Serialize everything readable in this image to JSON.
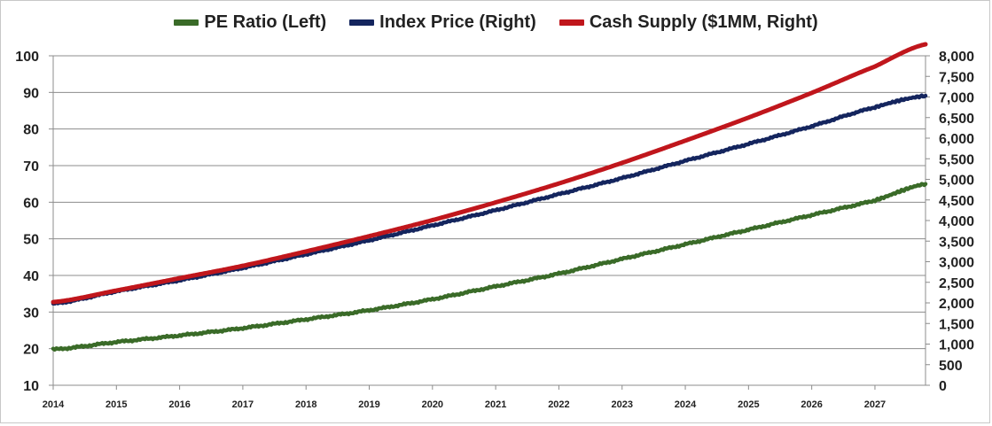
{
  "chart_data": {
    "type": "line",
    "title": "",
    "xlabel": "",
    "ylabel_left": "",
    "ylabel_right": "",
    "x_tick_labels": [
      "2014",
      "2015",
      "2016",
      "2017",
      "2018",
      "2019",
      "2020",
      "2021",
      "2022",
      "2023",
      "2024",
      "2025",
      "2026",
      "2027"
    ],
    "xlim": [
      2014,
      2027.8
    ],
    "ylim_left": [
      10,
      100
    ],
    "y_ticks_left": [
      "10",
      "20",
      "30",
      "40",
      "50",
      "60",
      "70",
      "80",
      "90",
      "100"
    ],
    "ylim_right": [
      0,
      8000
    ],
    "y_ticks_right": [
      "0",
      "500",
      "1,000",
      "1,500",
      "2,000",
      "2,500",
      "3,000",
      "3,500",
      "4,000",
      "4,500",
      "5,000",
      "5,500",
      "6,000",
      "6,500",
      "7,000",
      "7,500",
      "8,000"
    ],
    "grid": "horizontal",
    "legend_position": "top",
    "series": [
      {
        "name": "PE Ratio (Left)",
        "axis": "left",
        "color": "#3a6b28",
        "x": [
          2014,
          2015,
          2016,
          2017,
          2018,
          2019,
          2020,
          2021,
          2022,
          2023,
          2024,
          2025,
          2026,
          2027,
          2027.8
        ],
        "values": [
          19.8,
          21.8,
          23.6,
          25.6,
          28.0,
          30.5,
          33.5,
          37.0,
          40.5,
          44.5,
          48.5,
          52.5,
          56.5,
          60.5,
          65.0
        ]
      },
      {
        "name": "Index Price (Right)",
        "axis": "right",
        "color": "#14255e",
        "x": [
          2014,
          2015,
          2016,
          2017,
          2018,
          2019,
          2020,
          2021,
          2022,
          2023,
          2024,
          2025,
          2026,
          2027,
          2027.8
        ],
        "values": [
          1980,
          2280,
          2550,
          2850,
          3180,
          3520,
          3880,
          4250,
          4640,
          5030,
          5450,
          5860,
          6290,
          6750,
          7030
        ]
      },
      {
        "name": "Cash Supply ($1MM, Right)",
        "axis": "right",
        "color": "#c0161c",
        "x": [
          2014,
          2015,
          2016,
          2017,
          2018,
          2019,
          2020,
          2021,
          2022,
          2023,
          2024,
          2025,
          2026,
          2027,
          2027.8
        ],
        "values": [
          2020,
          2300,
          2600,
          2900,
          3250,
          3620,
          4010,
          4440,
          4900,
          5400,
          5940,
          6500,
          7100,
          7740,
          8280
        ]
      }
    ]
  }
}
